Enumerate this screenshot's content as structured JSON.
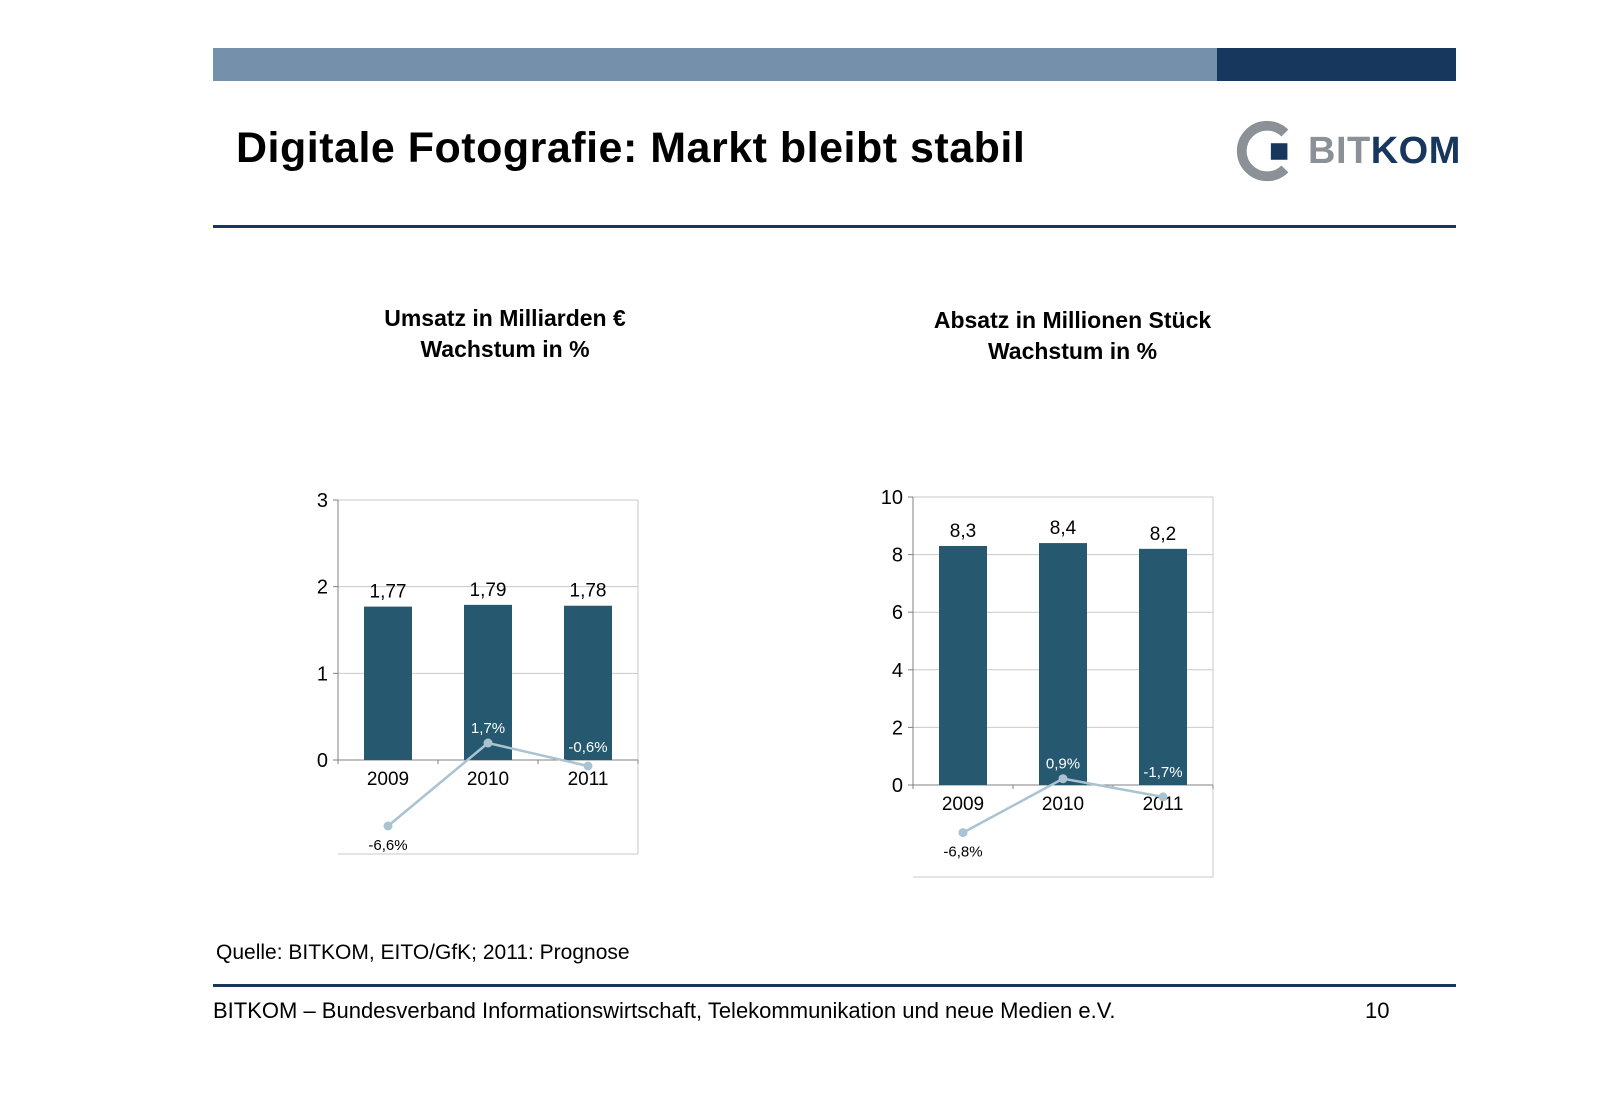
{
  "slide": {
    "title": "Digitale Fotografie: Markt bleibt stabil",
    "source": "Quelle: BITKOM, EITO/GfK; 2011: Prognose",
    "footer": "BITKOM – Bundesverband Informationswirtschaft, Telekommunikation und neue Medien e.V.",
    "page_number": "10"
  },
  "logo": {
    "text_gray": "BIT",
    "text_navy": "KOM"
  },
  "colors": {
    "navy": "#17375d",
    "steel_blue": "#7590aa",
    "bar_fill": "#26586f",
    "growth_line": "#a9c3d1",
    "gridline": "#c9c9c9",
    "axis": "#808080",
    "logo_gray": "#8b9196"
  },
  "chart_data": [
    {
      "id": "umsatz",
      "type": "bar",
      "title_line1": "Umsatz in Milliarden €",
      "title_line2": "Wachstum in %",
      "categories": [
        "2009",
        "2010",
        "2011"
      ],
      "values": [
        1.77,
        1.79,
        1.78
      ],
      "value_labels": [
        "1,77",
        "1,79",
        "1,78"
      ],
      "ylim": [
        0,
        3
      ],
      "yticks": [
        0,
        1,
        2,
        3
      ],
      "grid": true,
      "legend": "none",
      "growth_series": {
        "name": "Wachstum in %",
        "values": [
          -6.6,
          1.7,
          -0.6
        ],
        "labels": [
          "-6,6%",
          "1,7%",
          "-0,6%"
        ]
      }
    },
    {
      "id": "absatz",
      "type": "bar",
      "title_line1": "Absatz in Millionen Stück",
      "title_line2": "Wachstum in %",
      "categories": [
        "2009",
        "2010",
        "2011"
      ],
      "values": [
        8.3,
        8.4,
        8.2
      ],
      "value_labels": [
        "8,3",
        "8,4",
        "8,2"
      ],
      "ylim": [
        0,
        10
      ],
      "yticks": [
        0,
        2,
        4,
        6,
        8,
        10
      ],
      "grid": true,
      "legend": "none",
      "growth_series": {
        "name": "Wachstum in %",
        "values": [
          -6.8,
          0.9,
          -1.7
        ],
        "labels": [
          "-6,8%",
          "0,9%",
          "-1,7%"
        ]
      }
    }
  ]
}
